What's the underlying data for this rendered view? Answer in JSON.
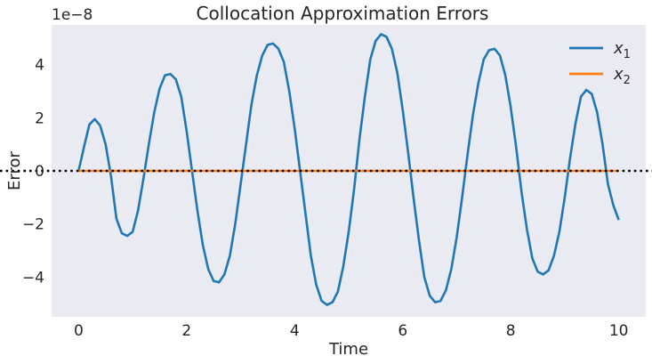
{
  "chart_data": {
    "type": "line",
    "title": "Collocation Approximation Errors",
    "xlabel": "Time",
    "ylabel": "Error",
    "y_scale_label": "1e−8",
    "xlim": [
      -0.5,
      10.5
    ],
    "ylim": [
      -5.5,
      5.5
    ],
    "xticks": [
      0,
      2,
      4,
      6,
      8,
      10
    ],
    "xtick_labels": [
      "0",
      "2",
      "4",
      "6",
      "8",
      "10"
    ],
    "yticks": [
      -4,
      -2,
      0,
      2,
      4
    ],
    "ytick_labels": [
      "−4",
      "−2",
      "0",
      "2",
      "4"
    ],
    "grid": false,
    "background": "#eaeaf2",
    "legend": {
      "position": "top-right",
      "entries": [
        {
          "base": "x",
          "sub": "1",
          "color": "#1f77b4"
        },
        {
          "base": "x",
          "sub": "2",
          "color": "#ff7f0e"
        }
      ]
    },
    "reference_line": {
      "y": 0,
      "style": "dotted",
      "color": "#000000"
    },
    "series": [
      {
        "key": "x1",
        "color": "#1f77b4",
        "x": [
          0.0,
          0.1,
          0.2,
          0.3,
          0.4,
          0.5,
          0.6,
          0.7,
          0.8,
          0.9,
          1.0,
          1.1,
          1.2,
          1.3,
          1.4,
          1.5,
          1.6,
          1.7,
          1.8,
          1.9,
          2.0,
          2.1,
          2.2,
          2.3,
          2.4,
          2.5,
          2.6,
          2.7,
          2.8,
          2.9,
          3.0,
          3.1,
          3.2,
          3.3,
          3.4,
          3.5,
          3.6,
          3.7,
          3.8,
          3.9,
          4.0,
          4.1,
          4.2,
          4.3,
          4.4,
          4.5,
          4.6,
          4.7,
          4.8,
          4.9,
          5.0,
          5.1,
          5.2,
          5.3,
          5.4,
          5.5,
          5.6,
          5.7,
          5.8,
          5.9,
          6.0,
          6.1,
          6.2,
          6.3,
          6.4,
          6.5,
          6.6,
          6.7,
          6.8,
          6.9,
          7.0,
          7.1,
          7.2,
          7.3,
          7.4,
          7.5,
          7.6,
          7.7,
          7.8,
          7.9,
          8.0,
          8.1,
          8.2,
          8.3,
          8.4,
          8.5,
          8.6,
          8.7,
          8.8,
          8.9,
          9.0,
          9.1,
          9.2,
          9.3,
          9.4,
          9.5,
          9.6,
          9.7,
          9.8,
          9.9,
          10.0
        ],
        "y": [
          0.0,
          0.9,
          1.75,
          1.95,
          1.7,
          1.0,
          -0.2,
          -1.8,
          -2.35,
          -2.45,
          -2.3,
          -1.5,
          -0.3,
          1.0,
          2.2,
          3.1,
          3.6,
          3.65,
          3.45,
          2.8,
          1.5,
          0.0,
          -1.5,
          -2.8,
          -3.7,
          -4.15,
          -4.2,
          -3.9,
          -3.2,
          -2.0,
          -0.5,
          1.0,
          2.5,
          3.6,
          4.35,
          4.75,
          4.8,
          4.6,
          4.1,
          3.0,
          1.6,
          0.0,
          -1.6,
          -3.2,
          -4.3,
          -4.9,
          -5.05,
          -4.95,
          -4.55,
          -3.6,
          -2.3,
          -0.7,
          1.2,
          2.8,
          4.2,
          4.9,
          5.15,
          5.05,
          4.6,
          3.7,
          2.3,
          0.7,
          -1.0,
          -2.6,
          -4.0,
          -4.7,
          -4.95,
          -4.9,
          -4.5,
          -3.7,
          -2.5,
          -1.0,
          0.6,
          2.1,
          3.3,
          4.2,
          4.55,
          4.6,
          4.35,
          3.6,
          2.4,
          0.9,
          -0.8,
          -2.2,
          -3.3,
          -3.8,
          -3.9,
          -3.75,
          -3.2,
          -2.3,
          -1.0,
          0.5,
          1.8,
          2.8,
          3.05,
          2.9,
          2.2,
          1.0,
          -0.5,
          -1.3,
          -1.85
        ]
      },
      {
        "key": "x2",
        "color": "#ff7f0e",
        "x": [
          0.0,
          10.0
        ],
        "y": [
          0.0,
          0.0
        ]
      }
    ]
  }
}
